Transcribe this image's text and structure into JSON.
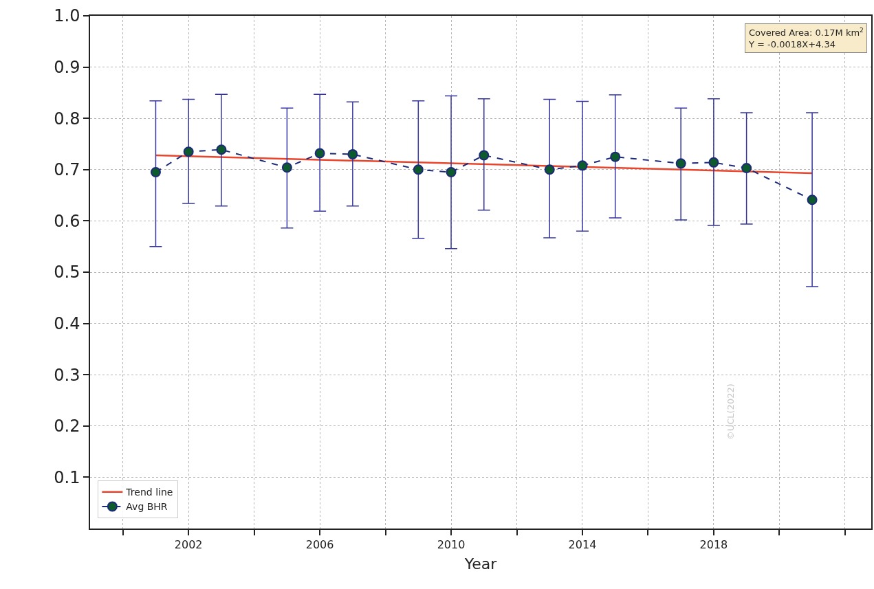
{
  "chart_data": {
    "type": "line",
    "xlabel": "Year",
    "xlim": [
      1999,
      2022.8
    ],
    "ylim": [
      0,
      1
    ],
    "xticks": [
      {
        "value": 2000,
        "label": null
      },
      2002,
      {
        "value": 2004,
        "label": null
      },
      2006,
      {
        "value": 2008,
        "label": null
      },
      2010,
      {
        "value": 2012,
        "label": null
      },
      2014,
      {
        "value": 2016,
        "label": null
      },
      2018,
      {
        "value": 2020,
        "label": null
      },
      {
        "value": 2022,
        "label": null
      }
    ],
    "yticks": [
      0.1,
      0.2,
      0.3,
      0.4,
      0.5,
      0.6,
      0.7,
      0.8,
      0.9,
      {
        "value": 1,
        "label": "1.0"
      }
    ],
    "grid": true,
    "legend": "bottom left",
    "annotations": [
      "Covered Area: 0.17M km$^{2}$",
      "Y = -0.0018X+4.34",
      "©UCL(2022)"
    ],
    "series": [
      {
        "name": "Trend line",
        "color": "#e8452c",
        "line_style": "solid",
        "marker": "none",
        "x": [
          2001,
          2021
        ],
        "values": [
          0.728,
          0.693
        ]
      },
      {
        "name": "Avg BHR",
        "color": "#1c2a78",
        "line_style": "dashed",
        "marker": "circle",
        "x": [
          2001,
          2002,
          2003,
          2005,
          2006,
          2007,
          2009,
          2010,
          2011,
          2013,
          2014,
          2015,
          2017,
          2018,
          2019,
          2021
        ],
        "values": [
          0.695,
          0.735,
          0.739,
          0.704,
          0.732,
          0.73,
          0.7,
          0.695,
          0.728,
          0.7,
          0.708,
          0.725,
          0.712,
          0.714,
          0.703,
          0.641
        ],
        "errors": [
          [
            0.55,
            0.834
          ],
          [
            0.634,
            0.837
          ],
          [
            0.629,
            0.847
          ],
          [
            0.586,
            0.82
          ],
          [
            0.619,
            0.847
          ],
          [
            0.629,
            0.832
          ],
          [
            0.566,
            0.834
          ],
          [
            0.546,
            0.844
          ],
          [
            0.621,
            0.838
          ],
          [
            0.567,
            0.837
          ],
          [
            0.58,
            0.833
          ],
          [
            0.606,
            0.846
          ],
          [
            0.602,
            0.82
          ],
          [
            0.591,
            0.838
          ],
          [
            0.594,
            0.811
          ],
          [
            0.472,
            0.811
          ]
        ]
      }
    ]
  }
}
